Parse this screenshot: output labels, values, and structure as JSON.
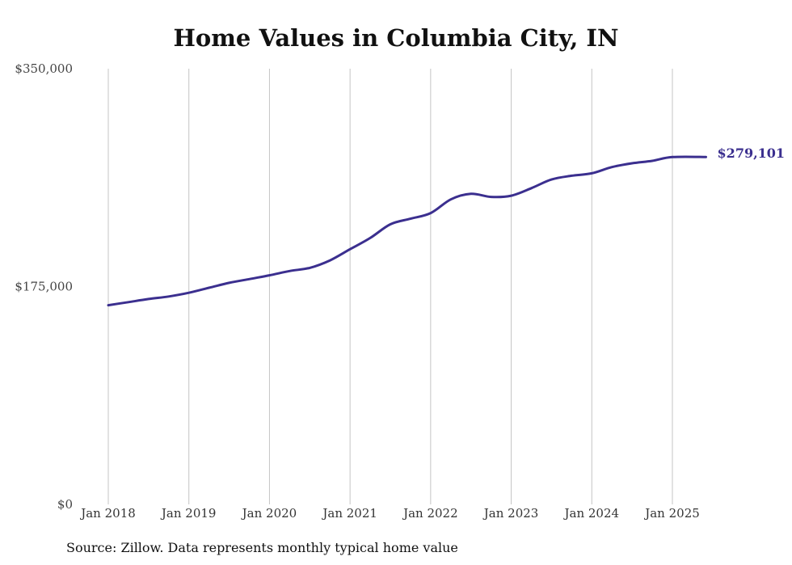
{
  "chart_data": {
    "type": "line",
    "title": "Home Values in Columbia City, IN",
    "y_ticks": [
      "$0",
      "$175,000",
      "$350,000"
    ],
    "y_tick_values": [
      0,
      175000,
      350000
    ],
    "ylim": [
      0,
      350000
    ],
    "x_ticks": [
      "Jan 2018",
      "Jan 2019",
      "Jan 2020",
      "Jan 2021",
      "Jan 2022",
      "Jan 2023",
      "Jan 2024",
      "Jan 2025"
    ],
    "x_tick_values": [
      "2018-01",
      "2019-01",
      "2020-01",
      "2021-01",
      "2022-01",
      "2023-01",
      "2024-01",
      "2025-01"
    ],
    "grid": "vertical",
    "series": [
      {
        "color": "#3b2f8f",
        "points": [
          [
            "2018-01",
            160000
          ],
          [
            "2018-04",
            162500
          ],
          [
            "2018-07",
            165000
          ],
          [
            "2018-10",
            167000
          ],
          [
            "2019-01",
            170000
          ],
          [
            "2019-04",
            174000
          ],
          [
            "2019-07",
            178000
          ],
          [
            "2019-10",
            181000
          ],
          [
            "2020-01",
            184000
          ],
          [
            "2020-04",
            187500
          ],
          [
            "2020-07",
            190000
          ],
          [
            "2020-10",
            196000
          ],
          [
            "2021-01",
            205000
          ],
          [
            "2021-04",
            214000
          ],
          [
            "2021-07",
            225000
          ],
          [
            "2021-10",
            229500
          ],
          [
            "2022-01",
            234000
          ],
          [
            "2022-04",
            245000
          ],
          [
            "2022-07",
            249500
          ],
          [
            "2022-10",
            247000
          ],
          [
            "2023-01",
            248000
          ],
          [
            "2023-04",
            254000
          ],
          [
            "2023-07",
            261000
          ],
          [
            "2023-10",
            264000
          ],
          [
            "2024-01",
            266000
          ],
          [
            "2024-04",
            271000
          ],
          [
            "2024-07",
            274000
          ],
          [
            "2024-10",
            276000
          ],
          [
            "2025-01",
            279000
          ],
          [
            "2025-06",
            279101
          ]
        ]
      }
    ],
    "end_label": "$279,101",
    "source": "Source: Zillow. Data represents monthly typical home value"
  }
}
